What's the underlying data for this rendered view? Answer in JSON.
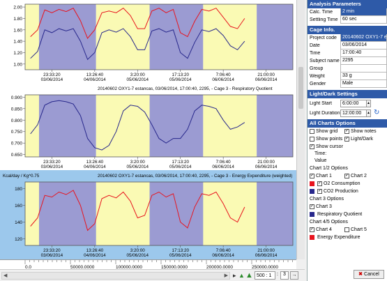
{
  "panel": {
    "analysis": {
      "header": "Analysis Parameters",
      "calc_time_label": "Calc. Time",
      "calc_time_value": "2 min",
      "settling_label": "Settling Time",
      "settling_value": "60 sec"
    },
    "cage": {
      "header": "Cage Info.",
      "fields": [
        {
          "label": "Project code",
          "value": "20140602 OXY1-7 e"
        },
        {
          "label": "Date",
          "value": "03/06/2014"
        },
        {
          "label": "Time",
          "value": "17:00:40"
        },
        {
          "label": "Subject name",
          "value": "2295"
        },
        {
          "label": "Group",
          "value": ""
        },
        {
          "label": "Weight",
          "value": "33 g"
        },
        {
          "label": "Gender",
          "value": "Male"
        }
      ]
    },
    "lightdark": {
      "header": "Light/Dark Settings",
      "start_label": "Light Start",
      "start_value": "6:00:00",
      "duration_label": "Light Duration",
      "duration_value": "12:00:00"
    },
    "options": {
      "header": "All Charts Options",
      "show_grid": "Show grid",
      "show_notes": "Show notes",
      "show_points": "Show points",
      "light_dark": "Light/Dark",
      "show_cursor": "Show cursor",
      "time": "Time:",
      "value": "Value",
      "chart12_options": "Chart 1/2 Options",
      "chart1": "Chart 1",
      "chart2": "Chart 2",
      "o2": "O2 Consumption",
      "co2": "CO2 Production",
      "chart3_options": "Chart 3 Options",
      "chart3": "Chart 3",
      "rq": "Respiratory Quotient",
      "chart45_options": "Chart 4/5 Options",
      "chart4": "Chart 4",
      "chart5": "Chart 5",
      "ee": "Energy Expenditure",
      "cancel": "Cancel"
    }
  },
  "colors": {
    "night": "#9b9bd2",
    "day": "#fafab4",
    "red": "#e8141e",
    "blue": "#28288c",
    "selected_bg": "#9cc8ec",
    "header": "#2e5aa8"
  },
  "bottom": {
    "zoom_value": "500 : 1",
    "zoom_extra": "3"
  },
  "ruler_labels": [
    "0.0",
    "50000.0000",
    "100000.0000",
    "150000.0000",
    "200000.0000",
    "250000.0000"
  ],
  "chart_data": [
    {
      "type": "line",
      "yticks": [
        "2.00",
        "1.80",
        "1.60",
        "1.40",
        "1.20",
        "1.00"
      ],
      "ylim": [
        0.9,
        2.05
      ],
      "x_ticks": [
        [
          "23:33:20",
          "03/06/2014"
        ],
        [
          "13:26:40",
          "04/06/2014"
        ],
        [
          "3:20:00",
          "05/06/2014"
        ],
        [
          "17:13:20",
          "05/06/2014"
        ],
        [
          "7:06:40",
          "06/06/2014"
        ],
        [
          "21:00:00",
          "06/06/2014"
        ]
      ],
      "series": [
        {
          "color": "red",
          "values": [
            1.48,
            1.6,
            1.95,
            1.9,
            1.96,
            1.92,
            1.98,
            1.76,
            1.45,
            1.6,
            1.9,
            1.93,
            1.9,
            1.98,
            1.85,
            1.62,
            1.62,
            1.93,
            1.98,
            1.9,
            1.96,
            1.55,
            1.48,
            1.75,
            1.96,
            1.93,
            1.98,
            1.82,
            1.66,
            1.62,
            1.8
          ]
        },
        {
          "color": "blue",
          "values": [
            1.1,
            1.22,
            1.6,
            1.55,
            1.62,
            1.58,
            1.62,
            1.4,
            1.08,
            1.2,
            1.55,
            1.6,
            1.56,
            1.62,
            1.48,
            1.25,
            1.25,
            1.58,
            1.62,
            1.56,
            1.6,
            1.2,
            1.1,
            1.38,
            1.6,
            1.57,
            1.62,
            1.5,
            1.32,
            1.25,
            1.4
          ]
        }
      ]
    },
    {
      "type": "line",
      "title": "20140602 OXY1-7 estancas, 03/06/2014, 17:00:40, 2295,  - Cage 3 - Respiratory Quotient",
      "yticks": [
        "0.900",
        "0.850",
        "0.800",
        "0.750",
        "0.700",
        "0.650"
      ],
      "ylim": [
        0.64,
        0.91
      ],
      "x_ticks": [
        [
          "23:33:20",
          "03/06/2014"
        ],
        [
          "13:26:40",
          "04/06/2014"
        ],
        [
          "3:20:00",
          "05/06/2014"
        ],
        [
          "17:13:20",
          "05/06/2014"
        ],
        [
          "7:06:40",
          "06/06/2014"
        ],
        [
          "21:00:00",
          "06/06/2014"
        ]
      ],
      "series": [
        {
          "color": "blue",
          "values": [
            0.74,
            0.78,
            0.865,
            0.88,
            0.885,
            0.88,
            0.87,
            0.82,
            0.72,
            0.68,
            0.67,
            0.69,
            0.75,
            0.84,
            0.865,
            0.86,
            0.835,
            0.78,
            0.72,
            0.7,
            0.72,
            0.72,
            0.76,
            0.84,
            0.865,
            0.86,
            0.85,
            0.8,
            0.76,
            0.77,
            0.79
          ]
        }
      ]
    },
    {
      "type": "line",
      "title": "20140602 OXY1-7 estancas, 03/06/2014, 17:00:40, 2295,  - Cage 3 - Energy Expenditure (weighted)",
      "ylabel": "Kcal/day / Kg^0.75",
      "yticks": [
        "180",
        "160",
        "140",
        "120"
      ],
      "ylim": [
        112,
        188
      ],
      "x_ticks": [
        [
          "23:33:20",
          "03/06/2014"
        ],
        [
          "13:26:40",
          "04/06/2014"
        ],
        [
          "3:20:00",
          "05/06/2014"
        ],
        [
          "17:13:20",
          "05/06/2014"
        ],
        [
          "7:06:40",
          "06/06/2014"
        ],
        [
          "21:00:00",
          "06/06/2014"
        ]
      ],
      "series": [
        {
          "color": "red",
          "values": [
            135,
            145,
            172,
            170,
            176,
            173,
            178,
            160,
            130,
            138,
            168,
            172,
            169,
            176,
            165,
            145,
            148,
            172,
            176,
            170,
            174,
            140,
            133,
            158,
            174,
            172,
            176,
            162,
            145,
            140,
            158
          ]
        }
      ]
    }
  ]
}
